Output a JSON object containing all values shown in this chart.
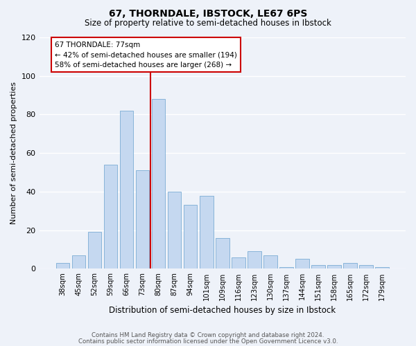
{
  "title": "67, THORNDALE, IBSTOCK, LE67 6PS",
  "subtitle": "Size of property relative to semi-detached houses in Ibstock",
  "xlabel": "Distribution of semi-detached houses by size in Ibstock",
  "ylabel": "Number of semi-detached properties",
  "categories": [
    "38sqm",
    "45sqm",
    "52sqm",
    "59sqm",
    "66sqm",
    "73sqm",
    "80sqm",
    "87sqm",
    "94sqm",
    "101sqm",
    "109sqm",
    "116sqm",
    "123sqm",
    "130sqm",
    "137sqm",
    "144sqm",
    "151sqm",
    "158sqm",
    "165sqm",
    "172sqm",
    "179sqm"
  ],
  "values": [
    3,
    7,
    19,
    54,
    82,
    51,
    88,
    40,
    33,
    38,
    16,
    6,
    9,
    7,
    1,
    5,
    2,
    2,
    3,
    2,
    1
  ],
  "bar_color": "#c5d8f0",
  "bar_edge_color": "#7badd4",
  "subject_label": "67 THORNDALE: 77sqm",
  "annotation_line1": "← 42% of semi-detached houses are smaller (194)",
  "annotation_line2": "58% of semi-detached houses are larger (268) →",
  "annotation_box_color": "#ffffff",
  "annotation_box_edge": "#cc0000",
  "ylim": [
    0,
    120
  ],
  "background_color": "#eef2f9",
  "grid_color": "#ffffff",
  "footer_line1": "Contains HM Land Registry data © Crown copyright and database right 2024.",
  "footer_line2": "Contains public sector information licensed under the Open Government Licence v3.0.",
  "vline_color": "#cc0000",
  "vline_x_index": 5.5
}
